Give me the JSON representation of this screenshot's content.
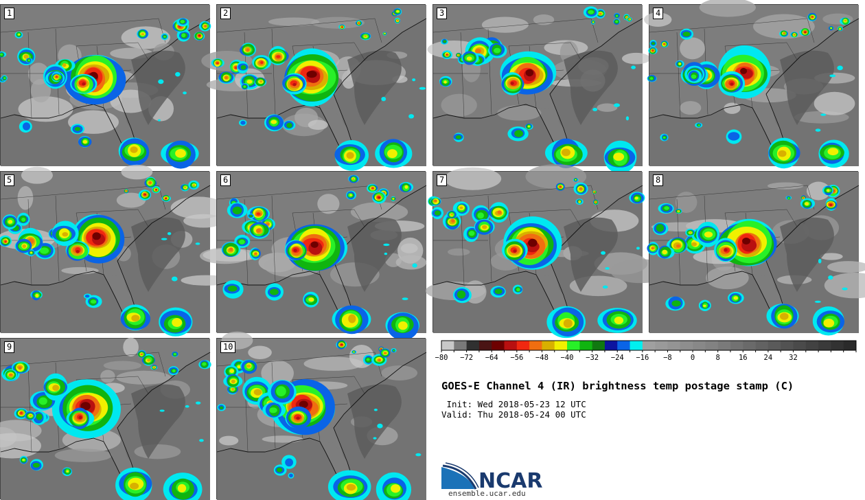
{
  "panels": [
    {
      "label": "1"
    },
    {
      "label": "2"
    },
    {
      "label": "3"
    },
    {
      "label": "4"
    },
    {
      "label": "5"
    },
    {
      "label": "6"
    },
    {
      "label": "7"
    },
    {
      "label": "8"
    },
    {
      "label": "9"
    },
    {
      "label": "10"
    }
  ],
  "colorbar": {
    "colors": [
      "#c8c8c8",
      "#7a7a7a",
      "#303030",
      "#4a1414",
      "#6e0000",
      "#b81010",
      "#f02810",
      "#f06e10",
      "#d8b000",
      "#f0f000",
      "#28f028",
      "#10b410",
      "#107810",
      "#0c14a0",
      "#0a64e6",
      "#00f0f0",
      "#a0a0a0",
      "#9a9a9a",
      "#949494",
      "#8e8e8e",
      "#888888",
      "#828282",
      "#7a7a7a",
      "#727272",
      "#6a6a6a",
      "#626262",
      "#5a5a5a",
      "#525252",
      "#4a4a4a",
      "#424242",
      "#3a3a3a",
      "#323232",
      "#2a2a2a"
    ],
    "tick_labels": [
      "−80",
      "−72",
      "−64",
      "−56",
      "−48",
      "−40",
      "−32",
      "−24",
      "−16",
      "−8",
      "0",
      "8",
      "16",
      "24",
      "32"
    ]
  },
  "title": "GOES-E Channel 4 (IR) brightness temp postage stamp (C)",
  "init": " Init: Wed 2018-05-23 12 UTC",
  "valid": "Valid: Thu 2018-05-24 00 UTC",
  "logo": {
    "text": "NCAR",
    "site": "ensemble.ucar.edu"
  }
}
